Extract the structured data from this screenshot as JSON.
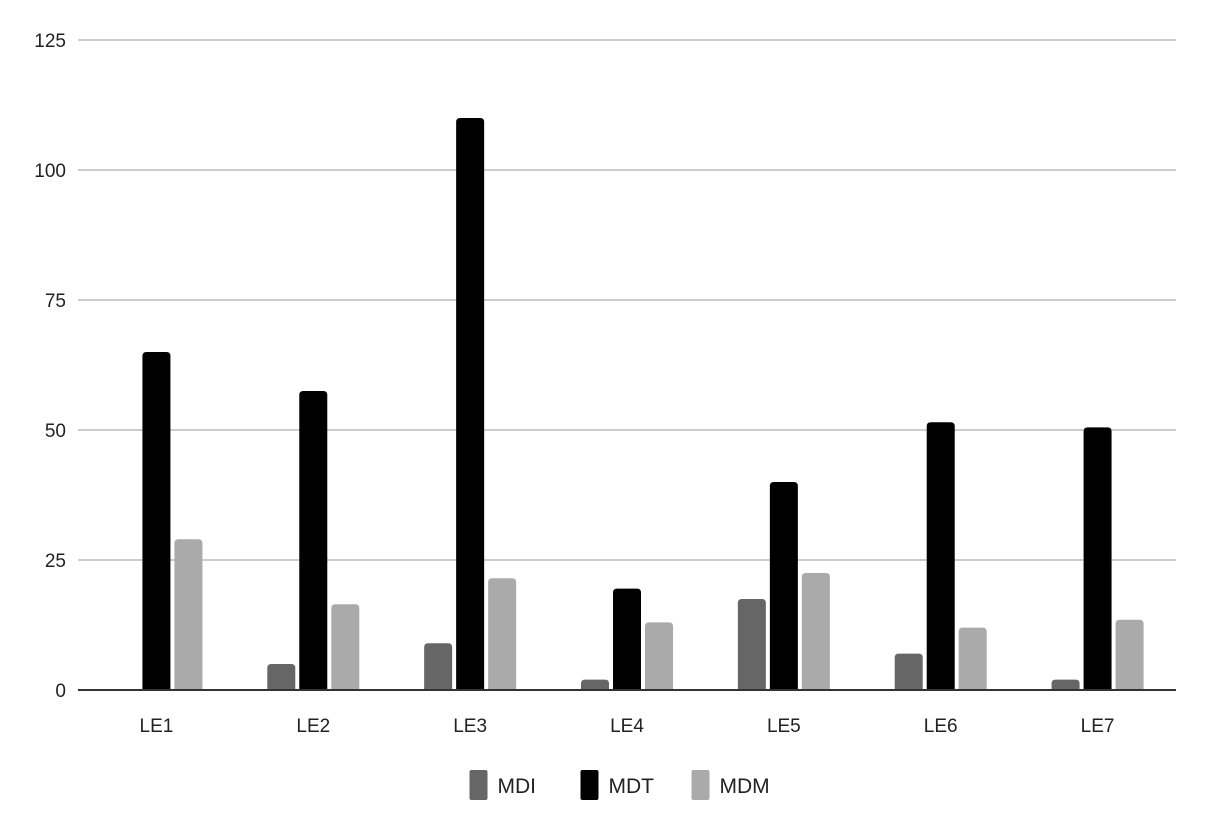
{
  "chart_data": {
    "type": "bar",
    "categories": [
      "LE1",
      "LE2",
      "LE3",
      "LE4",
      "LE5",
      "LE6",
      "LE7"
    ],
    "series": [
      {
        "name": "MDI",
        "color": "#666666",
        "values": [
          0,
          5,
          9,
          2,
          17.5,
          7,
          2
        ]
      },
      {
        "name": "MDT",
        "color": "#000000",
        "values": [
          65,
          57.5,
          110,
          19.5,
          40,
          51.5,
          50.5
        ]
      },
      {
        "name": "MDM",
        "color": "#aaaaaa",
        "values": [
          29,
          16.5,
          21.5,
          13,
          22.5,
          12,
          13.5
        ]
      }
    ],
    "ylim": [
      0,
      125
    ],
    "yticks": [
      "0",
      "25",
      "50",
      "75",
      "100",
      "125"
    ],
    "grid": true,
    "legend": "bottom",
    "title": "",
    "xlabel": "",
    "ylabel": ""
  }
}
